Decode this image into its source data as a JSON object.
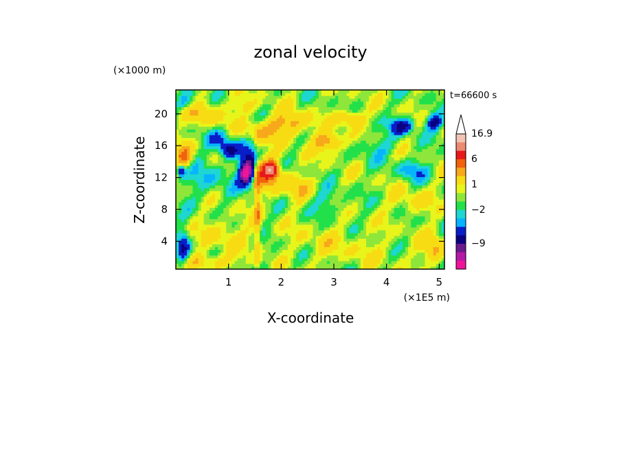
{
  "chart_data": {
    "type": "heatmap",
    "title": "zonal velocity",
    "xlabel": "X-coordinate",
    "ylabel": "Z-coordinate",
    "x_unit": "(×1E5 m)",
    "y_unit": "(×1000 m)",
    "time_label": "t=66600 s",
    "xlim": [
      0,
      5.1
    ],
    "ylim": [
      0.5,
      23
    ],
    "x_ticks": [
      "1",
      "2",
      "3",
      "4",
      "5"
    ],
    "x_tick_values": [
      1,
      2,
      3,
      4,
      5
    ],
    "y_ticks": [
      "4",
      "8",
      "12",
      "16",
      "20"
    ],
    "y_tick_values": [
      4,
      8,
      12,
      16,
      20
    ],
    "colorbar": {
      "labels": [
        "16.9",
        "6",
        "1",
        "−2",
        "−9"
      ],
      "label_values": [
        16.9,
        6,
        1,
        -2,
        -9
      ],
      "extend": "max",
      "levels": [
        {
          "value": 16.9,
          "color": "#f2c4b4"
        },
        {
          "value": 12,
          "color": "#ec8a72"
        },
        {
          "value": 8,
          "color": "#e8181c"
        },
        {
          "value": 6,
          "color": "#f0620c"
        },
        {
          "value": 4,
          "color": "#f7a81b"
        },
        {
          "value": 2,
          "color": "#f7dc14"
        },
        {
          "value": 1,
          "color": "#e8f51a"
        },
        {
          "value": 0,
          "color": "#8fe63a"
        },
        {
          "value": -1,
          "color": "#22e04a"
        },
        {
          "value": -2,
          "color": "#1ed6d2"
        },
        {
          "value": -3,
          "color": "#06b4ff"
        },
        {
          "value": -5,
          "color": "#0a1ec8"
        },
        {
          "value": -7,
          "color": "#0a0080"
        },
        {
          "value": -9,
          "color": "#6a1a8a"
        },
        {
          "value": -11,
          "color": "#b31aa6"
        },
        {
          "value": -14,
          "color": "#f0149a"
        }
      ]
    },
    "field": {
      "background_value": 0.5,
      "features": [
        {
          "x": 0.15,
          "z": 14.5,
          "rx": 0.15,
          "rz": 1.5,
          "v": 6
        },
        {
          "x": 0.1,
          "z": 13,
          "rx": 0.08,
          "rz": 0.8,
          "v": -6
        },
        {
          "x": 0.2,
          "z": 21.5,
          "rx": 0.2,
          "rz": 1.0,
          "v": -3
        },
        {
          "x": 0.15,
          "z": 3,
          "rx": 0.12,
          "rz": 2.5,
          "v": -5
        },
        {
          "x": 0.55,
          "z": 20,
          "rx": 0.4,
          "rz": 1.5,
          "v": 3
        },
        {
          "x": 0.6,
          "z": 12,
          "rx": 0.5,
          "rz": 2.5,
          "v": -2
        },
        {
          "x": 1.0,
          "z": 15.5,
          "rx": 0.18,
          "rz": 1.0,
          "v": -6
        },
        {
          "x": 0.85,
          "z": 17,
          "rx": 0.25,
          "rz": 1.2,
          "v": -3
        },
        {
          "x": 1.4,
          "z": 13.5,
          "rx": 0.2,
          "rz": 2.5,
          "v": -7
        },
        {
          "x": 1.33,
          "z": 12.5,
          "rx": 0.12,
          "rz": 1.2,
          "v": -9
        },
        {
          "x": 1.55,
          "z": 8,
          "rx": 0.06,
          "rz": 8,
          "v": 4
        },
        {
          "x": 1.7,
          "z": 12.5,
          "rx": 0.28,
          "rz": 2.2,
          "v": 6
        },
        {
          "x": 1.8,
          "z": 13,
          "rx": 0.12,
          "rz": 0.8,
          "v": 12
        },
        {
          "x": 1.7,
          "z": 18,
          "rx": 0.5,
          "rz": 1.3,
          "v": 3
        },
        {
          "x": 2.2,
          "z": 19,
          "rx": 0.35,
          "rz": 1.4,
          "v": 4
        },
        {
          "x": 2.3,
          "z": 11,
          "rx": 0.3,
          "rz": 1.5,
          "v": 3
        },
        {
          "x": 2.9,
          "z": 16.5,
          "rx": 0.3,
          "rz": 1.2,
          "v": 5
        },
        {
          "x": 3.3,
          "z": 19.5,
          "rx": 0.25,
          "rz": 1.0,
          "v": 4
        },
        {
          "x": 2.9,
          "z": 9,
          "rx": 0.3,
          "rz": 1.5,
          "v": -2
        },
        {
          "x": 2.7,
          "z": 4,
          "rx": 0.55,
          "rz": 2.0,
          "v": 1
        },
        {
          "x": 3.8,
          "z": 16,
          "rx": 0.35,
          "rz": 1.5,
          "v": -2
        },
        {
          "x": 4.3,
          "z": 18.5,
          "rx": 0.22,
          "rz": 1.0,
          "v": -6
        },
        {
          "x": 4.9,
          "z": 19,
          "rx": 0.15,
          "rz": 1.0,
          "v": -6
        },
        {
          "x": 4.5,
          "z": 13,
          "rx": 0.3,
          "rz": 1.3,
          "v": -3
        },
        {
          "x": 4.5,
          "z": 9,
          "rx": 0.4,
          "rz": 1.6,
          "v": 2
        },
        {
          "x": 3.5,
          "z": 3,
          "rx": 0.8,
          "rz": 2.2,
          "v": 1
        },
        {
          "x": 0.9,
          "z": 5,
          "rx": 0.45,
          "rz": 2.0,
          "v": 2
        },
        {
          "x": 0.6,
          "z": 1.5,
          "rx": 0.5,
          "rz": 1.0,
          "v": 3
        },
        {
          "x": 1.3,
          "z": 21,
          "rx": 0.25,
          "rz": 1.0,
          "v": 2
        },
        {
          "x": 4.9,
          "z": 3,
          "rx": 0.2,
          "rz": 2.0,
          "v": 4
        }
      ]
    }
  }
}
